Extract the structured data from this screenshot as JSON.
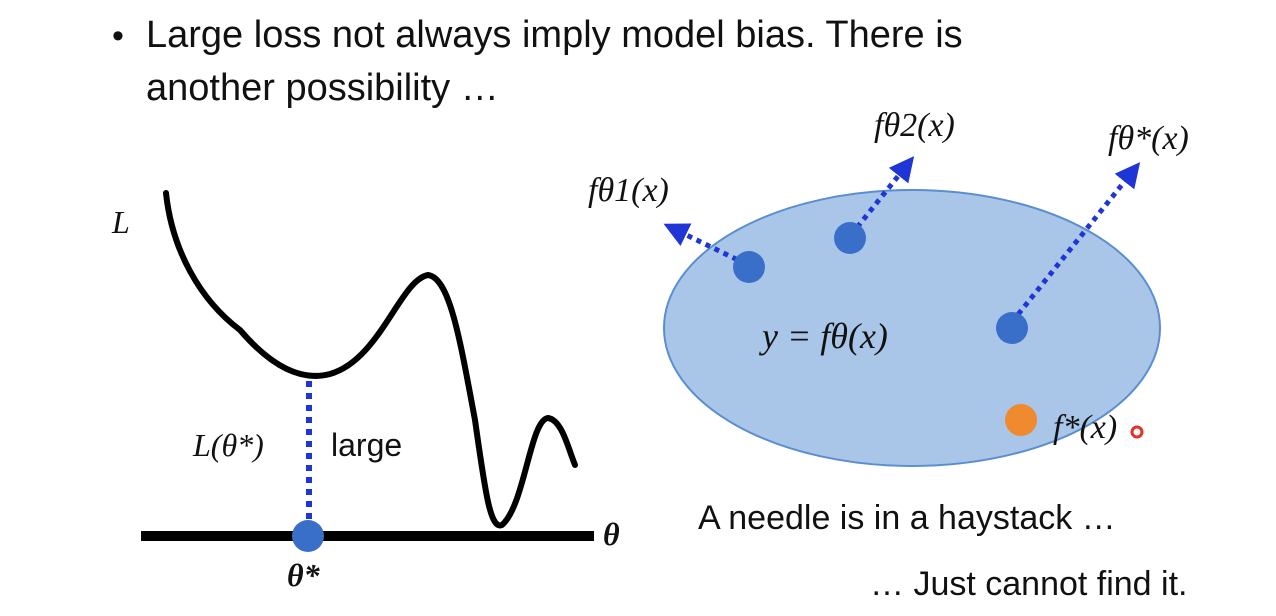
{
  "slide": {
    "bullet_symbol": "•",
    "bullet_line_1": "Large loss not always imply model bias. There is",
    "bullet_line_2": "another possibility …"
  },
  "loss_plot": {
    "y_axis_label": "L",
    "x_axis_label": "θ",
    "min_point_label": "θ*",
    "loss_value_label": "L(θ*)",
    "large_label": "large"
  },
  "model_space": {
    "ellipse_label": "y = fθ(x)",
    "points": [
      {
        "id": "theta1",
        "label": "fθ1(x)"
      },
      {
        "id": "theta2",
        "label": "fθ2(x)"
      },
      {
        "id": "theta_star",
        "label": "fθ*(x)"
      },
      {
        "id": "f_star",
        "label": "f*(x)"
      }
    ]
  },
  "captions": {
    "needle": "A needle is in a haystack …",
    "cannot_find": "… Just cannot find it."
  },
  "colors": {
    "ellipse_fill": "#a9c6e8",
    "ellipse_stroke": "#5b8ed0",
    "point_blue": "#3a6fc9",
    "point_orange": "#ef8a2e",
    "arrow_blue": "#1f35d6",
    "curve": "#000000",
    "cursor_red": "#e0322a"
  }
}
